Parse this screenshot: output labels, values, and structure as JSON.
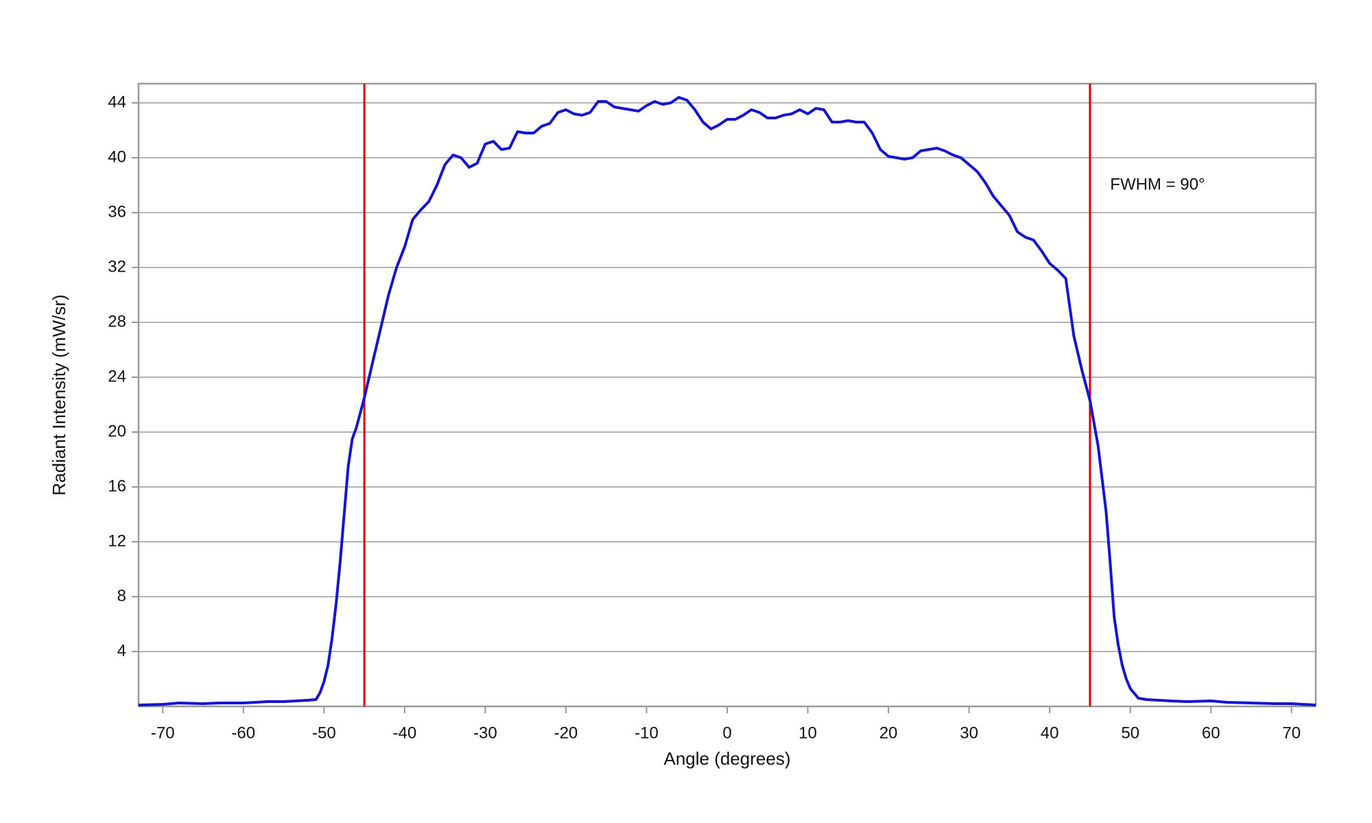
{
  "chart_data": {
    "type": "line",
    "xlabel": "Angle (degrees)",
    "ylabel": "Radiant Intensity (mW/sr)",
    "annotations": [
      {
        "text": "FWHM = 90°",
        "x": 47.5,
        "y": 38
      }
    ],
    "vlines": [
      -45,
      45
    ],
    "vline_color": "#e00000",
    "xlim": [
      -73,
      73
    ],
    "ylim": [
      0,
      45.4
    ],
    "xticks": [
      -70,
      -60,
      -50,
      -40,
      -30,
      -20,
      -10,
      0,
      10,
      20,
      30,
      40,
      50,
      60,
      70
    ],
    "yticks": [
      4,
      8,
      12,
      16,
      20,
      24,
      28,
      32,
      36,
      40,
      44
    ],
    "grid": true,
    "series": [
      {
        "color": "#1414d2",
        "x": [
          -73,
          -70,
          -68,
          -65,
          -63,
          -60,
          -57,
          -55,
          -52,
          -51,
          -50.5,
          -50,
          -49.5,
          -49,
          -48.5,
          -48,
          -47.5,
          -47,
          -46.5,
          -46,
          -45,
          -44,
          -43,
          -42,
          -41,
          -40,
          -39,
          -38,
          -37,
          -36,
          -35,
          -34,
          -33,
          -32,
          -31,
          -30,
          -29,
          -28,
          -27,
          -26,
          -25,
          -24,
          -23,
          -22,
          -21,
          -20,
          -19,
          -18,
          -17,
          -16,
          -15,
          -14,
          -12,
          -11,
          -10,
          -9,
          -8,
          -7,
          -6,
          -5,
          -4,
          -3,
          -2,
          -1,
          0,
          1,
          2,
          3,
          4,
          5,
          6,
          7,
          8,
          9,
          10,
          11,
          12,
          13,
          14,
          15,
          16,
          17,
          18,
          19,
          20,
          21,
          22,
          23,
          24,
          25,
          26,
          27,
          28,
          29,
          30,
          31,
          32,
          33,
          34,
          35,
          36,
          37,
          38,
          39,
          40,
          41,
          42,
          43,
          44,
          45,
          46,
          47,
          47.5,
          48,
          48.5,
          49,
          49.5,
          50,
          51,
          52,
          55,
          57,
          60,
          62,
          65,
          68,
          70,
          73
        ],
        "values": [
          0.1,
          0.15,
          0.25,
          0.2,
          0.25,
          0.25,
          0.35,
          0.35,
          0.45,
          0.5,
          1.0,
          1.8,
          3.0,
          5.0,
          7.5,
          10.5,
          14,
          17.5,
          19.5,
          20.3,
          22.5,
          25,
          27.5,
          30,
          32,
          33.5,
          35.5,
          36.2,
          36.8,
          38,
          39.5,
          40.2,
          40,
          39.3,
          39.6,
          41,
          41.2,
          40.6,
          40.7,
          41.9,
          41.8,
          41.8,
          42.3,
          42.5,
          43.3,
          43.5,
          43.2,
          43.1,
          43.3,
          44.1,
          44.1,
          43.7,
          43.5,
          43.4,
          43.8,
          44.1,
          43.9,
          44.0,
          44.4,
          44.2,
          43.5,
          42.6,
          42.1,
          42.4,
          42.8,
          42.8,
          43.1,
          43.5,
          43.3,
          42.9,
          42.9,
          43.1,
          43.2,
          43.5,
          43.2,
          43.6,
          43.5,
          42.6,
          42.6,
          42.7,
          42.6,
          42.6,
          41.8,
          40.6,
          40.1,
          40.0,
          39.9,
          40.0,
          40.5,
          40.6,
          40.7,
          40.5,
          40.2,
          40,
          39.5,
          39.0,
          38.2,
          37.2,
          36.5,
          35.8,
          34.6,
          34.2,
          34.0,
          33.2,
          32.3,
          31.8,
          31.2,
          27,
          24.5,
          22.3,
          19,
          14.2,
          10.5,
          6.5,
          4.5,
          3.0,
          2.0,
          1.3,
          0.6,
          0.5,
          0.4,
          0.35,
          0.4,
          0.3,
          0.25,
          0.2,
          0.2,
          0.1
        ]
      }
    ]
  }
}
